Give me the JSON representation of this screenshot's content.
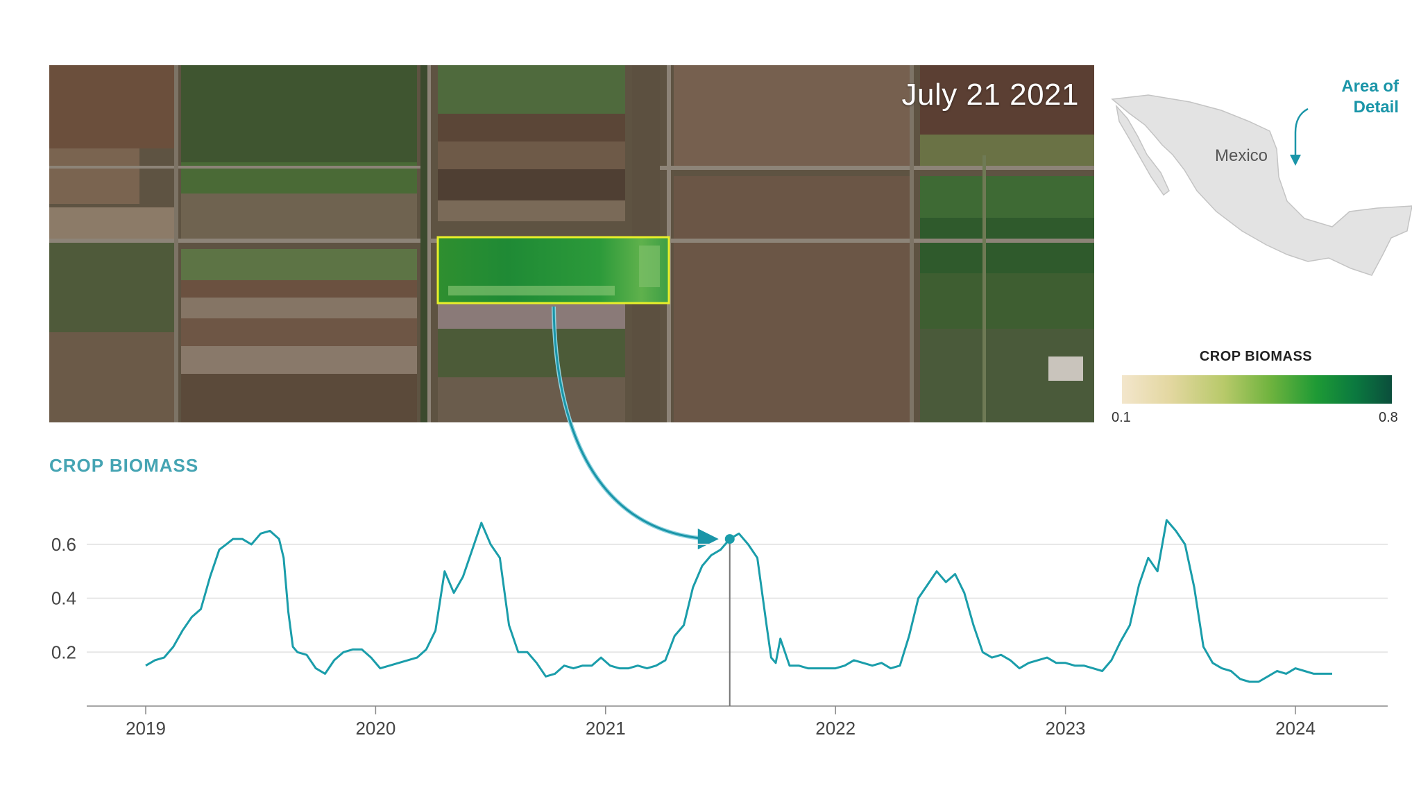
{
  "image": {
    "date": "July 21 2021"
  },
  "inset_map": {
    "country_label": "Mexico",
    "callout": "Area of Detail",
    "accent_color": "#1a95a8"
  },
  "legend": {
    "title": "CROP BIOMASS",
    "min_label": "0.1",
    "max_label": "0.8"
  },
  "chart_data": {
    "type": "line",
    "title": "CROP BIOMASS",
    "xlabel": "",
    "ylabel": "",
    "x_ticks": [
      "2019",
      "2020",
      "2021",
      "2022",
      "2023",
      "2024"
    ],
    "y_ticks": [
      "0.2",
      "0.4",
      "0.6"
    ],
    "xlim": [
      2018.75,
      2024.4
    ],
    "ylim": [
      0.0,
      0.7
    ],
    "grid": true,
    "line_color": "#1a9daa",
    "highlight": {
      "x": 2021.54,
      "y": 0.62
    },
    "series": [
      {
        "x": [
          2019.0,
          2019.04,
          2019.08,
          2019.12,
          2019.16,
          2019.2,
          2019.24,
          2019.28,
          2019.32,
          2019.35,
          2019.38,
          2019.42,
          2019.46,
          2019.5,
          2019.54,
          2019.58,
          2019.6,
          2019.62,
          2019.64,
          2019.66,
          2019.7,
          2019.74,
          2019.78,
          2019.82,
          2019.86,
          2019.9,
          2019.94,
          2019.98,
          2020.02,
          2020.06,
          2020.1,
          2020.14,
          2020.18,
          2020.22,
          2020.26,
          2020.3,
          2020.34,
          2020.38,
          2020.42,
          2020.46,
          2020.5,
          2020.54,
          2020.58,
          2020.62,
          2020.66,
          2020.7,
          2020.74,
          2020.78,
          2020.82,
          2020.86,
          2020.9,
          2020.94,
          2020.98,
          2021.02,
          2021.06,
          2021.1,
          2021.14,
          2021.18,
          2021.22,
          2021.26,
          2021.3,
          2021.34,
          2021.38,
          2021.42,
          2021.46,
          2021.5,
          2021.54,
          2021.58,
          2021.62,
          2021.66,
          2021.7,
          2021.72,
          2021.74,
          2021.76,
          2021.8,
          2021.84,
          2021.88,
          2021.92,
          2021.96,
          2022.0,
          2022.04,
          2022.08,
          2022.12,
          2022.16,
          2022.2,
          2022.24,
          2022.28,
          2022.32,
          2022.36,
          2022.4,
          2022.44,
          2022.48,
          2022.52,
          2022.56,
          2022.6,
          2022.64,
          2022.68,
          2022.72,
          2022.76,
          2022.8,
          2022.84,
          2022.88,
          2022.92,
          2022.96,
          2023.0,
          2023.04,
          2023.08,
          2023.12,
          2023.16,
          2023.2,
          2023.24,
          2023.28,
          2023.32,
          2023.36,
          2023.4,
          2023.44,
          2023.48,
          2023.52,
          2023.56,
          2023.6,
          2023.64,
          2023.68,
          2023.72,
          2023.76,
          2023.8,
          2023.84,
          2023.88,
          2023.92,
          2023.96,
          2024.0,
          2024.04,
          2024.08,
          2024.12,
          2024.16
        ],
        "y": [
          0.15,
          0.17,
          0.18,
          0.22,
          0.28,
          0.33,
          0.36,
          0.48,
          0.58,
          0.6,
          0.62,
          0.62,
          0.6,
          0.64,
          0.65,
          0.62,
          0.55,
          0.35,
          0.22,
          0.2,
          0.19,
          0.14,
          0.12,
          0.17,
          0.2,
          0.21,
          0.21,
          0.18,
          0.14,
          0.15,
          0.16,
          0.17,
          0.18,
          0.21,
          0.28,
          0.5,
          0.42,
          0.48,
          0.58,
          0.68,
          0.6,
          0.55,
          0.3,
          0.2,
          0.2,
          0.16,
          0.11,
          0.12,
          0.15,
          0.14,
          0.15,
          0.15,
          0.18,
          0.15,
          0.14,
          0.14,
          0.15,
          0.14,
          0.15,
          0.17,
          0.26,
          0.3,
          0.44,
          0.52,
          0.56,
          0.58,
          0.62,
          0.64,
          0.6,
          0.55,
          0.3,
          0.18,
          0.16,
          0.25,
          0.15,
          0.15,
          0.14,
          0.14,
          0.14,
          0.14,
          0.15,
          0.17,
          0.16,
          0.15,
          0.16,
          0.14,
          0.15,
          0.26,
          0.4,
          0.45,
          0.5,
          0.46,
          0.49,
          0.42,
          0.3,
          0.2,
          0.18,
          0.19,
          0.17,
          0.14,
          0.16,
          0.17,
          0.18,
          0.16,
          0.16,
          0.15,
          0.15,
          0.14,
          0.13,
          0.17,
          0.24,
          0.3,
          0.45,
          0.55,
          0.5,
          0.69,
          0.65,
          0.6,
          0.44,
          0.22,
          0.16,
          0.14,
          0.13,
          0.1,
          0.09,
          0.09,
          0.11,
          0.13,
          0.12,
          0.14,
          0.13,
          0.12,
          0.12,
          0.12
        ]
      }
    ]
  }
}
